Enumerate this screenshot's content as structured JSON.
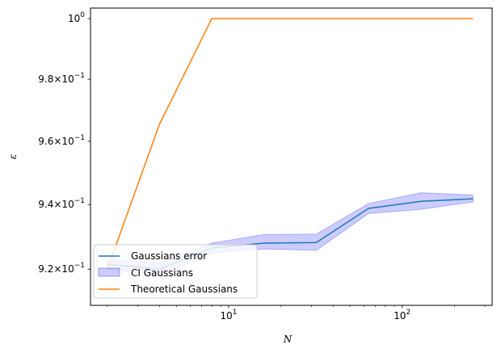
{
  "chart_data": {
    "type": "line",
    "xlabel": "N",
    "ylabel": "ε",
    "xscale": "log",
    "yscale": "log",
    "xlim": [
      1.6,
      330
    ],
    "ylim": [
      0.909,
      1.0035
    ],
    "x_ticks": [
      {
        "value": 10,
        "base": "10",
        "exp": "1"
      },
      {
        "value": 100,
        "base": "10",
        "exp": "2"
      }
    ],
    "y_ticks": [
      {
        "value": 0.92,
        "mant": "9.2",
        "exp": "−1"
      },
      {
        "value": 0.94,
        "mant": "9.4",
        "exp": "−1"
      },
      {
        "value": 0.96,
        "mant": "9.6",
        "exp": "−1"
      },
      {
        "value": 0.98,
        "mant": "9.8",
        "exp": "−1"
      },
      {
        "value": 1.0,
        "mant": "",
        "exp": "0"
      }
    ],
    "x": [
      2,
      4,
      8,
      16,
      32,
      64,
      128,
      256
    ],
    "series": [
      {
        "name": "Gaussians error",
        "type": "line",
        "color": "#1f77b4",
        "values": [
          0.9215,
          0.92,
          0.9265,
          0.928,
          0.9282,
          0.9388,
          0.941,
          0.9418
        ]
      },
      {
        "name": "CI Gaussians",
        "type": "band",
        "color": "#0000ff",
        "lower": [
          0.92,
          0.918,
          0.925,
          0.9262,
          0.9258,
          0.9372,
          0.9385,
          0.9408
        ],
        "upper": [
          0.923,
          0.922,
          0.928,
          0.9307,
          0.9308,
          0.9403,
          0.9437,
          0.943
        ]
      },
      {
        "name": "Theoretical Gaussians",
        "type": "line",
        "color": "#ff7f0e",
        "values": [
          0.92,
          0.9655,
          1.0,
          1.0,
          1.0,
          1.0,
          1.0,
          1.0
        ]
      }
    ],
    "legend": {
      "position": "lower-left",
      "entries": [
        "Gaussians error",
        "CI Gaussians",
        "Theoretical Gaussians"
      ]
    }
  }
}
